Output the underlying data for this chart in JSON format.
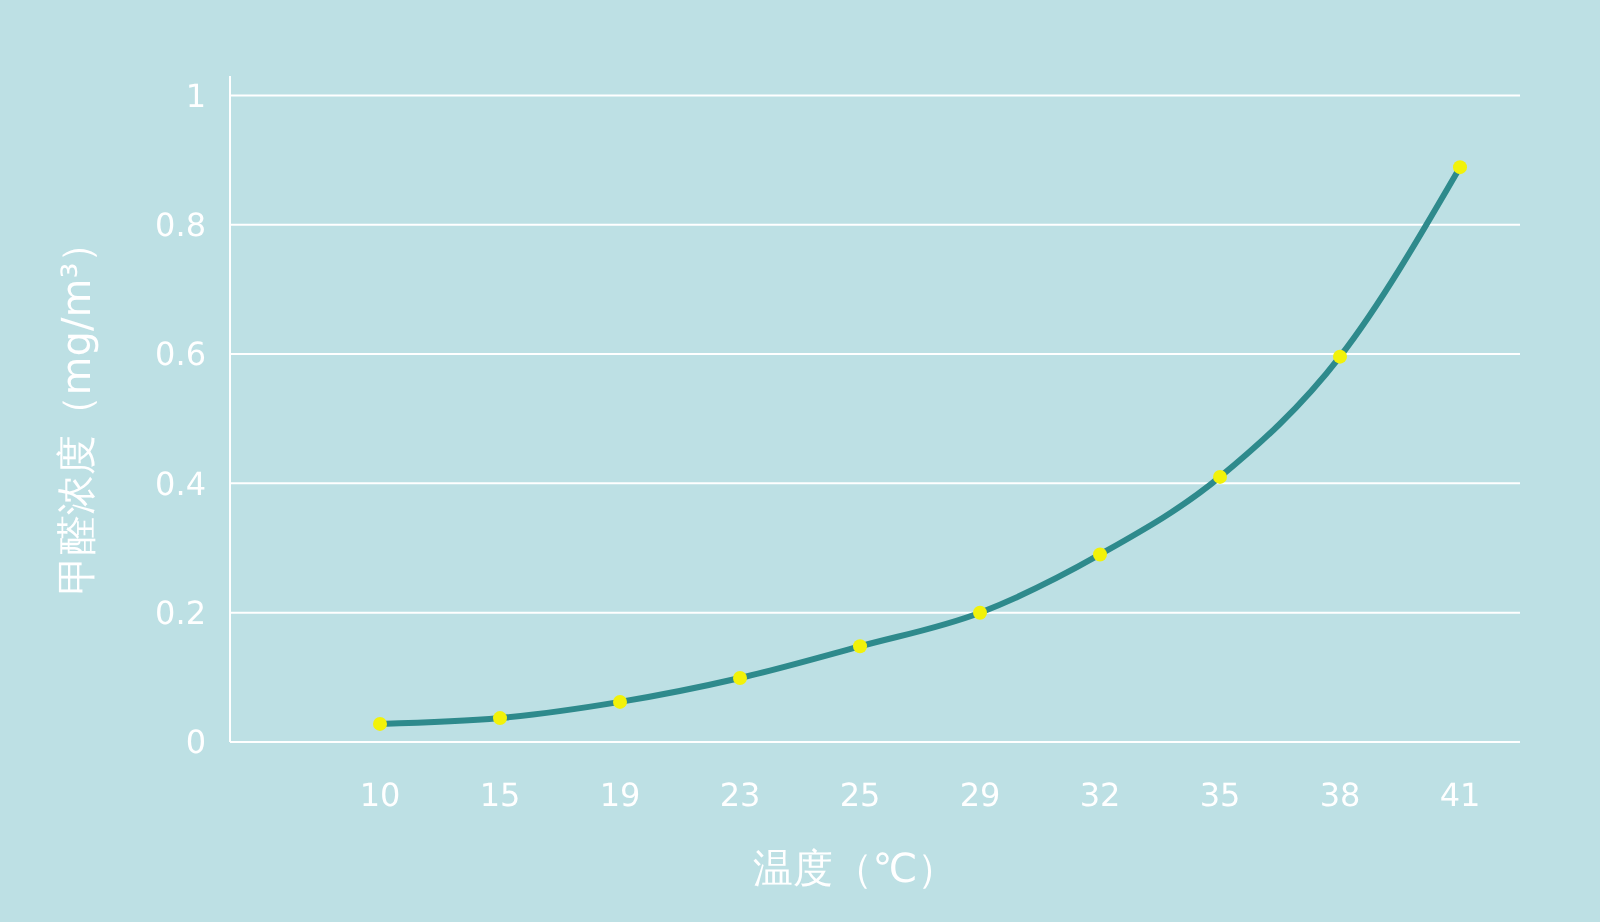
{
  "chart_data": {
    "type": "line",
    "xlabel": "温度（℃）",
    "ylabel": "甲醛浓度（mg/m³）",
    "categories": [
      "10",
      "15",
      "19",
      "23",
      "25",
      "29",
      "32",
      "35",
      "38",
      "41"
    ],
    "series": [
      {
        "color": "#2e8a8c",
        "colors": [
          "#f2f20a",
          "#f2f20a",
          "#f2f20a",
          "#f2f20a",
          "#f2f20a",
          "#f2f20a",
          "#f2f20a",
          "#f2f20a",
          "#f2f20a",
          "#f2f20a"
        ],
        "values": [
          0.028,
          0.037,
          0.062,
          0.099,
          0.148,
          0.2,
          0.29,
          0.41,
          0.596,
          0.889
        ]
      }
    ],
    "ylim": [
      0,
      1.03
    ],
    "yticks": [
      0,
      0.2,
      0.4,
      0.6,
      0.8,
      1
    ],
    "grid": "y",
    "marker": "circle",
    "line_style": "solid"
  }
}
